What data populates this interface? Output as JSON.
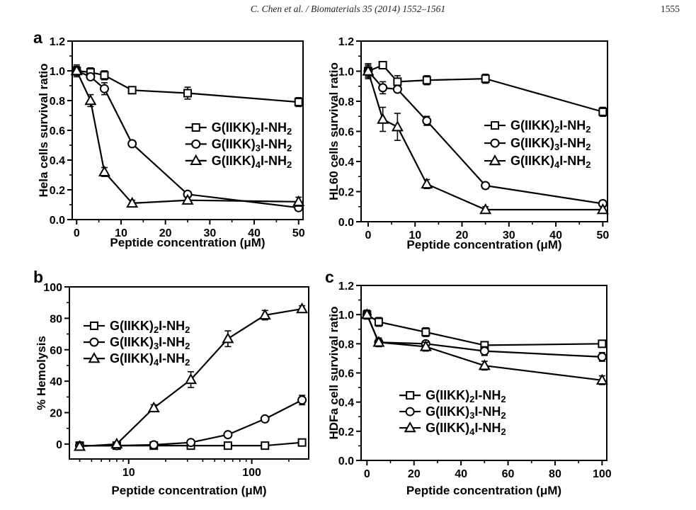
{
  "page": {
    "header": {
      "citation": "C. Chen et al. / Biomaterials 35 (2014) 1552–1561",
      "page_number": "1555"
    },
    "colors": {
      "ink": "#000000",
      "paper": "#ffffff"
    }
  },
  "chart_data": [
    {
      "id": "hela",
      "panel_label": "a",
      "type": "line",
      "xlabel": "Peptide concentration (μM)",
      "ylabel": "Hela cells survival ratio",
      "xscale": "linear",
      "xlim": [
        -1,
        51
      ],
      "ylim": [
        0,
        1.2
      ],
      "xticks": [
        0,
        10,
        20,
        30,
        40,
        50
      ],
      "xminor": [
        5,
        15,
        25,
        35,
        45
      ],
      "yticks": [
        0,
        0.2,
        0.4,
        0.6,
        0.8,
        1.0,
        1.2
      ],
      "yminor": [
        0.1,
        0.3,
        0.5,
        0.7,
        0.9,
        1.1
      ],
      "ytick_decimals": 1,
      "grid": false,
      "x": [
        0,
        3.125,
        6.25,
        12.5,
        25,
        50
      ],
      "series": [
        {
          "name": "G(IIKK)2I-NH2",
          "marker": "square",
          "name_parts": [
            {
              "t": "G(IIKK)"
            },
            {
              "t": "2",
              "sub": true
            },
            {
              "t": "I-NH"
            },
            {
              "t": "2",
              "sub": true
            }
          ],
          "values": [
            1.0,
            0.99,
            0.97,
            0.87,
            0.85,
            0.79
          ],
          "errors": [
            0.03,
            0.03,
            0.03,
            0.02,
            0.04,
            0.03
          ]
        },
        {
          "name": "G(IIKK)3I-NH2",
          "marker": "circle",
          "name_parts": [
            {
              "t": "G(IIKK)"
            },
            {
              "t": "3",
              "sub": true
            },
            {
              "t": "I-NH"
            },
            {
              "t": "2",
              "sub": true
            }
          ],
          "values": [
            1.0,
            0.96,
            0.88,
            0.51,
            0.17,
            0.08
          ],
          "errors": [
            0.03,
            0.02,
            0.04,
            0.02,
            0.02,
            0.02
          ]
        },
        {
          "name": "G(IIKK)4I-NH2",
          "marker": "triangle",
          "name_parts": [
            {
              "t": "G(IIKK)"
            },
            {
              "t": "4",
              "sub": true
            },
            {
              "t": "I-NH"
            },
            {
              "t": "2",
              "sub": true
            }
          ],
          "values": [
            1.0,
            0.8,
            0.32,
            0.11,
            0.13,
            0.12
          ],
          "errors": [
            0.04,
            0.04,
            0.03,
            0.02,
            0.02,
            0.03
          ]
        }
      ],
      "legend": {
        "position": "middle-right",
        "fx": 0.49,
        "fy": 0.484,
        "drow": 0.093
      }
    },
    {
      "id": "hl60",
      "panel_label": "",
      "type": "line",
      "xlabel": "Peptide concentration (μM)",
      "ylabel": "HL60 cells survival ratio",
      "xscale": "linear",
      "xlim": [
        -1.5,
        51
      ],
      "ylim": [
        0,
        1.2
      ],
      "xticks": [
        0,
        10,
        20,
        30,
        40,
        50
      ],
      "xminor": [
        5,
        15,
        25,
        35,
        45
      ],
      "yticks": [
        0,
        0.2,
        0.4,
        0.6,
        0.8,
        1.0,
        1.2
      ],
      "yminor": [
        0.1,
        0.3,
        0.5,
        0.7,
        0.9,
        1.1
      ],
      "ytick_decimals": 1,
      "grid": false,
      "x": [
        0,
        3.125,
        6.25,
        12.5,
        25,
        50
      ],
      "series": [
        {
          "name": "G(IIKK)2I-NH2",
          "marker": "square",
          "name_parts": [
            {
              "t": "G(IIKK)"
            },
            {
              "t": "2",
              "sub": true
            },
            {
              "t": "I-NH"
            },
            {
              "t": "2",
              "sub": true
            }
          ],
          "values": [
            1.0,
            1.04,
            0.93,
            0.94,
            0.95,
            0.73
          ],
          "errors": [
            0.05,
            0.02,
            0.04,
            0.03,
            0.03,
            0.03
          ]
        },
        {
          "name": "G(IIKK)3I-NH2",
          "marker": "circle",
          "name_parts": [
            {
              "t": "G(IIKK)"
            },
            {
              "t": "3",
              "sub": true
            },
            {
              "t": "I-NH"
            },
            {
              "t": "2",
              "sub": true
            }
          ],
          "values": [
            1.0,
            0.89,
            0.88,
            0.67,
            0.24,
            0.12
          ],
          "errors": [
            0.03,
            0.04,
            0.02,
            0.03,
            0.02,
            0.02
          ]
        },
        {
          "name": "G(IIKK)4I-NH2",
          "marker": "triangle",
          "name_parts": [
            {
              "t": "G(IIKK)"
            },
            {
              "t": "4",
              "sub": true
            },
            {
              "t": "I-NH"
            },
            {
              "t": "2",
              "sub": true
            }
          ],
          "values": [
            1.0,
            0.68,
            0.63,
            0.25,
            0.08,
            0.08
          ],
          "errors": [
            0.04,
            0.08,
            0.09,
            0.03,
            0.02,
            0.02
          ]
        }
      ],
      "legend": {
        "position": "middle-right",
        "fx": 0.5,
        "fy": 0.467,
        "drow": 0.098
      }
    },
    {
      "id": "hemolysis",
      "panel_label": "b",
      "type": "line",
      "xlabel": "Peptide concentration (μM)",
      "ylabel": "% Hemolysis",
      "xscale": "log",
      "xlim": [
        3.3,
        290
      ],
      "ylim": [
        -9.5,
        100
      ],
      "xticks": [
        10,
        100
      ],
      "xminor": [
        4,
        5,
        6,
        7,
        8,
        9,
        20,
        30,
        40,
        50,
        60,
        70,
        80,
        90,
        200
      ],
      "yticks": [
        0,
        20,
        40,
        60,
        80,
        100
      ],
      "yminor": [
        10,
        30,
        50,
        70,
        90
      ],
      "ytick_decimals": 0,
      "grid": false,
      "x": [
        4,
        8,
        16,
        32,
        64,
        128,
        256
      ],
      "series": [
        {
          "name": "G(IIKK)2I-NH2",
          "marker": "square",
          "name_parts": [
            {
              "t": "G(IIKK)"
            },
            {
              "t": "2",
              "sub": true
            },
            {
              "t": "I-NH"
            },
            {
              "t": "2",
              "sub": true
            }
          ],
          "values": [
            -1,
            -1,
            -1,
            -1,
            -1,
            -1,
            1
          ],
          "errors": [
            1,
            1,
            1,
            2,
            2,
            1,
            2
          ]
        },
        {
          "name": "G(IIKK)3I-NH2",
          "marker": "circle",
          "name_parts": [
            {
              "t": "G(IIKK)"
            },
            {
              "t": "3",
              "sub": true
            },
            {
              "t": "I-NH"
            },
            {
              "t": "2",
              "sub": true
            }
          ],
          "values": [
            -1,
            -1,
            -0.5,
            1,
            6,
            16,
            28
          ],
          "errors": [
            1,
            1,
            1,
            2,
            1.5,
            1.5,
            3
          ]
        },
        {
          "name": "G(IIKK)4I-NH2",
          "marker": "triangle",
          "name_parts": [
            {
              "t": "G(IIKK)"
            },
            {
              "t": "4",
              "sub": true
            },
            {
              "t": "I-NH"
            },
            {
              "t": "2",
              "sub": true
            }
          ],
          "values": [
            -1.5,
            0,
            23,
            41,
            67,
            82,
            86
          ],
          "errors": [
            1.5,
            1,
            2,
            5,
            5,
            3,
            2
          ]
        }
      ],
      "legend": {
        "position": "top-left",
        "fx": 0.059,
        "fy": 0.226,
        "drow": 0.095
      }
    },
    {
      "id": "hdfa",
      "panel_label": "c",
      "type": "line",
      "xlabel": "Peptide concentration (μM)",
      "ylabel": "HDFa cell survival ratio",
      "xscale": "linear",
      "xlim": [
        -2.5,
        102
      ],
      "ylim": [
        0,
        1.2
      ],
      "xticks": [
        0,
        20,
        40,
        60,
        80,
        100
      ],
      "xminor": [
        10,
        30,
        50,
        70,
        90
      ],
      "yticks": [
        0,
        0.2,
        0.4,
        0.6,
        0.8,
        1.0,
        1.2
      ],
      "yminor": [
        0.1,
        0.3,
        0.5,
        0.7,
        0.9,
        1.1
      ],
      "ytick_decimals": 1,
      "grid": false,
      "x": [
        0,
        5,
        25,
        50,
        100
      ],
      "series": [
        {
          "name": "G(IIKK)2I-NH2",
          "marker": "square",
          "name_parts": [
            {
              "t": "G(IIKK)"
            },
            {
              "t": "2",
              "sub": true
            },
            {
              "t": "I-NH"
            },
            {
              "t": "2",
              "sub": true
            }
          ],
          "values": [
            1.0,
            0.95,
            0.88,
            0.79,
            0.8
          ],
          "errors": [
            0.03,
            0.03,
            0.03,
            0.02,
            0.02
          ]
        },
        {
          "name": "G(IIKK)3I-NH2",
          "marker": "circle",
          "name_parts": [
            {
              "t": "G(IIKK)"
            },
            {
              "t": "3",
              "sub": true
            },
            {
              "t": "I-NH"
            },
            {
              "t": "2",
              "sub": true
            }
          ],
          "values": [
            1.0,
            0.81,
            0.8,
            0.75,
            0.71
          ],
          "errors": [
            0.03,
            0.02,
            0.02,
            0.03,
            0.03
          ]
        },
        {
          "name": "G(IIKK)4I-NH2",
          "marker": "triangle",
          "name_parts": [
            {
              "t": "G(IIKK)"
            },
            {
              "t": "4",
              "sub": true
            },
            {
              "t": "I-NH"
            },
            {
              "t": "2",
              "sub": true
            }
          ],
          "values": [
            1.0,
            0.81,
            0.78,
            0.65,
            0.55
          ],
          "errors": [
            0.03,
            0.03,
            0.03,
            0.03,
            0.03
          ]
        }
      ],
      "legend": {
        "position": "bottom-left",
        "fx": 0.156,
        "fy": 0.628,
        "drow": 0.093
      }
    }
  ]
}
